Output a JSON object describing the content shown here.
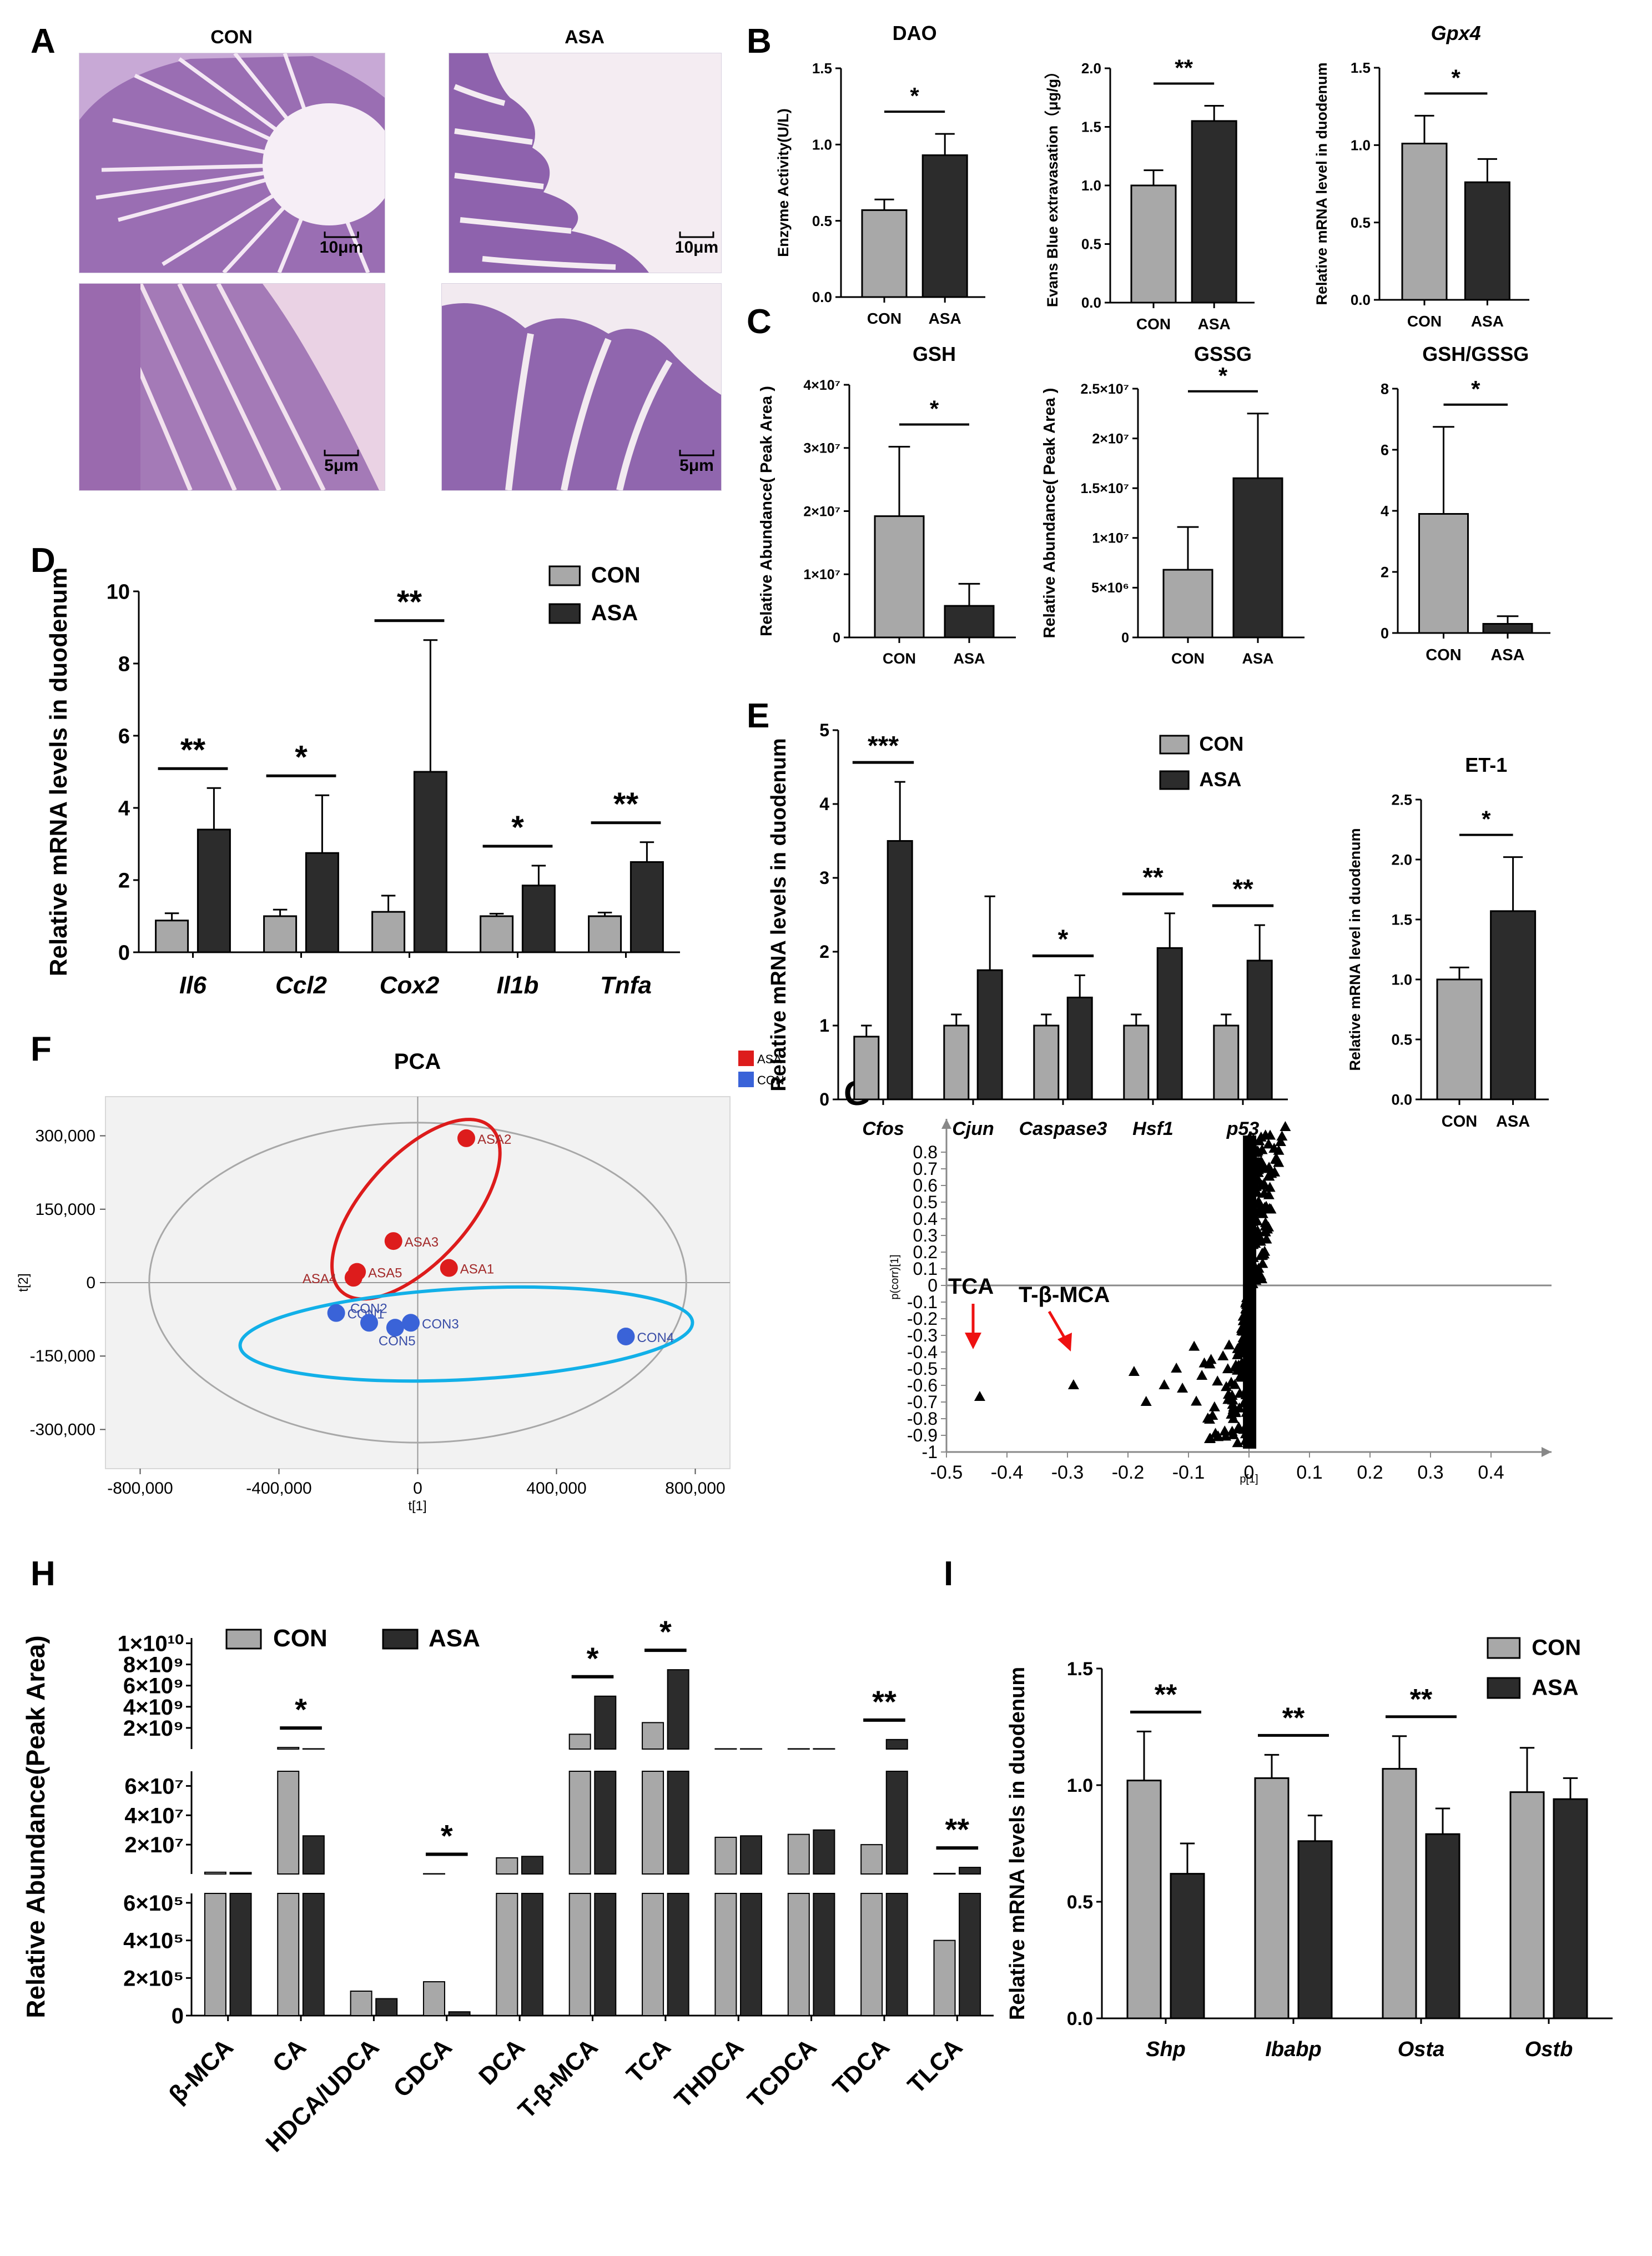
{
  "colors": {
    "con_gray": "#a8a8a8",
    "asa_dark": "#2c2c2c",
    "asa_red": "#dd1c1c",
    "con_blue": "#3a63d8",
    "ellipse_blue": "#12b0e8",
    "he_bg": "#f2e4f2",
    "he_tissue": "#a477b8",
    "arrow_red": "#ee1111"
  },
  "panel_letters": [
    "A",
    "B",
    "C",
    "D",
    "E",
    "F",
    "G",
    "H",
    "I"
  ],
  "panel_A": {
    "groups": [
      "CON",
      "ASA"
    ],
    "scales": [
      "10μm",
      "10μm",
      "5μm",
      "5μm"
    ]
  },
  "legend": {
    "con": "CON",
    "asa": "ASA"
  },
  "chart_data": [
    {
      "id": "B_DAO",
      "type": "bar",
      "title": "DAO",
      "ylabel": "Enzyme Activity(U/L)",
      "categories": [
        "CON",
        "ASA"
      ],
      "values": [
        0.57,
        0.93
      ],
      "errors": [
        0.07,
        0.14
      ],
      "ylim": [
        0,
        1.5
      ],
      "yticks": [
        "0.0",
        "0.5",
        "1.0",
        "1.5"
      ],
      "sig": "*"
    },
    {
      "id": "B_EB",
      "type": "bar",
      "title": "",
      "ylabel": "Evans Blue extravasation（μg/g）",
      "categories": [
        "CON",
        "ASA"
      ],
      "values": [
        1.0,
        1.55
      ],
      "errors": [
        0.13,
        0.13
      ],
      "ylim": [
        0,
        2.0
      ],
      "yticks": [
        "0.0",
        "0.5",
        "1.0",
        "1.5",
        "2.0"
      ],
      "sig": "**"
    },
    {
      "id": "B_Gpx4",
      "type": "bar",
      "title": "Gpx4",
      "ylabel": "Relative mRNA level in duodenum",
      "categories": [
        "CON",
        "ASA"
      ],
      "values": [
        1.01,
        0.76
      ],
      "errors": [
        0.18,
        0.15
      ],
      "ylim": [
        0,
        1.5
      ],
      "yticks": [
        "0.0",
        "0.5",
        "1.0",
        "1.5"
      ],
      "sig": "*"
    },
    {
      "id": "C_GSH",
      "type": "bar",
      "title": "GSH",
      "ylabel": "Relative Abundance( Peak Area )",
      "categories": [
        "CON",
        "ASA"
      ],
      "values": [
        19200000.0,
        5000000.0
      ],
      "errors": [
        11000000.0,
        3500000.0
      ],
      "ylim": [
        0,
        40000000.0
      ],
      "yticks": [
        "0",
        "1×10⁷",
        "2×10⁷",
        "3×10⁷",
        "4×10⁷"
      ],
      "sig": "*"
    },
    {
      "id": "C_GSSG",
      "type": "bar",
      "title": "GSSG",
      "ylabel": "Relative Abundance( Peak Area )",
      "categories": [
        "CON",
        "ASA"
      ],
      "values": [
        6800000.0,
        16000000.0
      ],
      "errors": [
        4300000.0,
        6500000.0
      ],
      "ylim": [
        0,
        25000000.0
      ],
      "yticks": [
        "0",
        "5×10⁶",
        "1×10⁷",
        "1.5×10⁷",
        "2×10⁷",
        "2.5×10⁷"
      ],
      "sig": "*"
    },
    {
      "id": "C_ratio",
      "type": "bar",
      "title": "GSH/GSSG",
      "ylabel": "",
      "categories": [
        "CON",
        "ASA"
      ],
      "values": [
        3.9,
        0.3
      ],
      "errors": [
        2.85,
        0.25
      ],
      "ylim": [
        0,
        8
      ],
      "yticks": [
        "0",
        "2",
        "4",
        "6",
        "8"
      ],
      "sig": "*"
    },
    {
      "id": "D",
      "type": "bar",
      "ylabel": "Relative mRNA levels in duodenum",
      "categories": [
        "Il6",
        "Ccl2",
        "Cox2",
        "Il1b",
        "Tnfa"
      ],
      "series": [
        {
          "name": "CON",
          "values": [
            0.88,
            1.0,
            1.12,
            1.0,
            1.0
          ],
          "errors": [
            0.2,
            0.18,
            0.45,
            0.07,
            0.1
          ]
        },
        {
          "name": "ASA",
          "values": [
            3.4,
            2.75,
            5.0,
            1.85,
            2.5
          ],
          "errors": [
            1.15,
            1.6,
            3.65,
            0.55,
            0.55
          ]
        }
      ],
      "ylim": [
        0,
        10
      ],
      "yticks": [
        "0",
        "2",
        "4",
        "6",
        "8",
        "10"
      ],
      "sig": [
        "**",
        "*",
        "**",
        "*",
        "**"
      ]
    },
    {
      "id": "E",
      "type": "bar",
      "ylabel": "Relative mRNA levels in duodenum",
      "categories": [
        "Cfos",
        "Cjun",
        "Caspase3",
        "Hsf1",
        "p53"
      ],
      "series": [
        {
          "name": "CON",
          "values": [
            0.85,
            1.0,
            1.0,
            1.0,
            1.0
          ],
          "errors": [
            0.15,
            0.15,
            0.15,
            0.15,
            0.15
          ]
        },
        {
          "name": "ASA",
          "values": [
            3.5,
            1.75,
            1.38,
            2.05,
            1.88
          ],
          "errors": [
            0.8,
            1.0,
            0.3,
            0.47,
            0.48
          ]
        }
      ],
      "ylim": [
        0,
        5
      ],
      "yticks": [
        "0",
        "1",
        "2",
        "3",
        "4",
        "5"
      ],
      "sig": [
        "***",
        "",
        "*",
        "**",
        "**"
      ]
    },
    {
      "id": "E_ET1",
      "type": "bar",
      "title": "ET-1",
      "ylabel": "Relative mRNA level in duodenum",
      "categories": [
        "CON",
        "ASA"
      ],
      "values": [
        1.0,
        1.57
      ],
      "errors": [
        0.1,
        0.45
      ],
      "ylim": [
        0,
        2.5
      ],
      "yticks": [
        "0.0",
        "0.5",
        "1.0",
        "1.5",
        "2.0",
        "2.5"
      ],
      "sig": "*"
    },
    {
      "id": "F",
      "type": "scatter",
      "title": "PCA",
      "xlabel": "t[1]",
      "ylabel": "t[2]",
      "xlim": [
        -900000,
        900000
      ],
      "ylim": [
        -380000,
        380000
      ],
      "xticks": [
        "-800,000",
        "-400,000",
        "0",
        "400,000",
        "800,000"
      ],
      "yticks": [
        "-300,000",
        "-150,000",
        "0",
        "150,000",
        "300,000"
      ],
      "legend": [
        "ASA",
        "CON"
      ],
      "points": [
        {
          "label": "ASA2",
          "x": 140000,
          "y": 295000,
          "g": "ASA"
        },
        {
          "label": "ASA3",
          "x": -70000,
          "y": 85000,
          "g": "ASA"
        },
        {
          "label": "ASA1",
          "x": 90000,
          "y": 30000,
          "g": "ASA"
        },
        {
          "label": "ASA5",
          "x": -175000,
          "y": 22000,
          "g": "ASA"
        },
        {
          "label": "ASA4",
          "x": -185000,
          "y": 10000,
          "g": "ASA"
        },
        {
          "label": "CON1",
          "x": -235000,
          "y": -62000,
          "g": "CON"
        },
        {
          "label": "CON2",
          "x": -140000,
          "y": -82000,
          "g": "CON"
        },
        {
          "label": "CON5",
          "x": -65000,
          "y": -92000,
          "g": "CON"
        },
        {
          "label": "CON3",
          "x": -20000,
          "y": -82000,
          "g": "CON"
        },
        {
          "label": "CON4",
          "x": 600000,
          "y": -110000,
          "g": "CON"
        }
      ]
    },
    {
      "id": "G",
      "type": "scatter",
      "xlabel": "p[1]",
      "ylabel": "p(corr)[1]",
      "xlim": [
        -0.5,
        0.5
      ],
      "ylim": [
        -1,
        0.9
      ],
      "xticks": [
        "-0.5",
        "-0.4",
        "-0.3",
        "-0.2",
        "-0.1",
        "0",
        "0.1",
        "0.2",
        "0.3",
        "0.4"
      ],
      "yticks": [
        "0.8",
        "0.7",
        "0.6",
        "0.5",
        "0.4",
        "0.3",
        "0.2",
        "0.1",
        "0",
        "-0.1",
        "-0.2",
        "-0.3",
        "-0.4",
        "-0.5",
        "-0.6",
        "-0.7",
        "-0.8",
        "-0.9",
        "-1"
      ],
      "highlights": [
        {
          "label": "TCA",
          "x": -0.445,
          "y": -0.67
        },
        {
          "label": "T-β-MCA",
          "x": -0.29,
          "y": -0.6
        }
      ]
    },
    {
      "id": "H",
      "type": "bar",
      "ylabel": "Relative Abundance(Peak Area)",
      "categories": [
        "β-MCA",
        "CA",
        "HDCA/UDCA",
        "CDCA",
        "DCA",
        "T-β-MCA",
        "TCA",
        "THDCA",
        "TCDCA",
        "TDCA",
        "TLCA"
      ],
      "series": [
        {
          "name": "CON",
          "values": [
            1200000.0,
            150000000.0,
            130000.0,
            180000.0,
            11000000.0,
            1400000000.0,
            2500000000.0,
            25000000.0,
            27000000.0,
            20000000.0,
            400000.0
          ]
        },
        {
          "name": "ASA",
          "values": [
            1000000.0,
            26000000.0,
            90000.0,
            20000.0,
            12000000.0,
            5000000000.0,
            7500000000.0,
            26000000.0,
            30000000.0,
            900000000.0,
            4500000.0
          ]
        }
      ],
      "yticks_low": [
        "0",
        "2×10⁵",
        "4×10⁵",
        "6×10⁵"
      ],
      "yticks_mid": [
        "2×10⁷",
        "4×10⁷",
        "6×10⁷"
      ],
      "yticks_high": [
        "2×10⁹",
        "4×10⁹",
        "6×10⁹",
        "8×10⁹",
        "1×10¹⁰"
      ],
      "sig": [
        "",
        "*",
        "",
        "*",
        "",
        "*",
        "*",
        "",
        "",
        "**",
        "**"
      ]
    },
    {
      "id": "I",
      "type": "bar",
      "ylabel": "Relative mRNA levels in duodenum",
      "categories": [
        "Shp",
        "Ibabp",
        "Osta",
        "Ostb"
      ],
      "series": [
        {
          "name": "CON",
          "values": [
            1.02,
            1.03,
            1.07,
            0.97
          ],
          "errors": [
            0.21,
            0.1,
            0.14,
            0.19
          ]
        },
        {
          "name": "ASA",
          "values": [
            0.62,
            0.76,
            0.79,
            0.94
          ],
          "errors": [
            0.13,
            0.11,
            0.11,
            0.09
          ]
        }
      ],
      "ylim": [
        0,
        1.5
      ],
      "yticks": [
        "0.0",
        "0.5",
        "1.0",
        "1.5"
      ],
      "sig": [
        "**",
        "**",
        "**",
        ""
      ]
    }
  ]
}
